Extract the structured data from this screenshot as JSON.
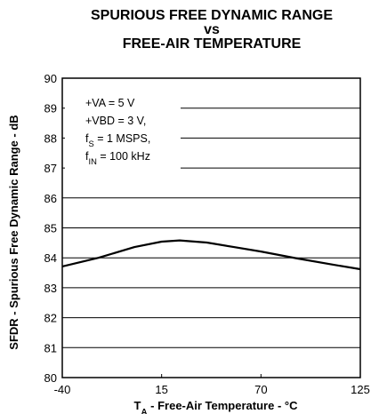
{
  "chart_data": {
    "type": "line",
    "title": [
      "SPURIOUS FREE DYNAMIC RANGE",
      "vs",
      "FREE-AIR TEMPERATURE"
    ],
    "y_label": "SFDR - Spurious Free Dynamic Range - dB",
    "x_label": [
      "T",
      "A",
      " - Free-Air Temperature - °C"
    ],
    "annotation": [
      [
        "+VA = 5 V"
      ],
      [
        "+VBD = 3 V,"
      ],
      [
        "f",
        "S",
        " = 1 MSPS,"
      ],
      [
        "f",
        "IN",
        " = 100 kHz"
      ]
    ],
    "x": [
      -40,
      -20,
      0,
      15,
      25,
      40,
      55,
      70,
      90,
      110,
      125
    ],
    "series": [
      {
        "color": "#000000",
        "values": [
          83.71,
          84.0,
          84.36,
          84.54,
          84.58,
          84.51,
          84.36,
          84.21,
          83.98,
          83.77,
          83.62
        ]
      }
    ],
    "xlim": [
      -40,
      125
    ],
    "xticks": [
      -40,
      15,
      70,
      125
    ],
    "ylim": [
      80,
      90
    ],
    "yticks": [
      80,
      81,
      82,
      83,
      84,
      85,
      86,
      87,
      88,
      89,
      90
    ],
    "grid": true
  }
}
